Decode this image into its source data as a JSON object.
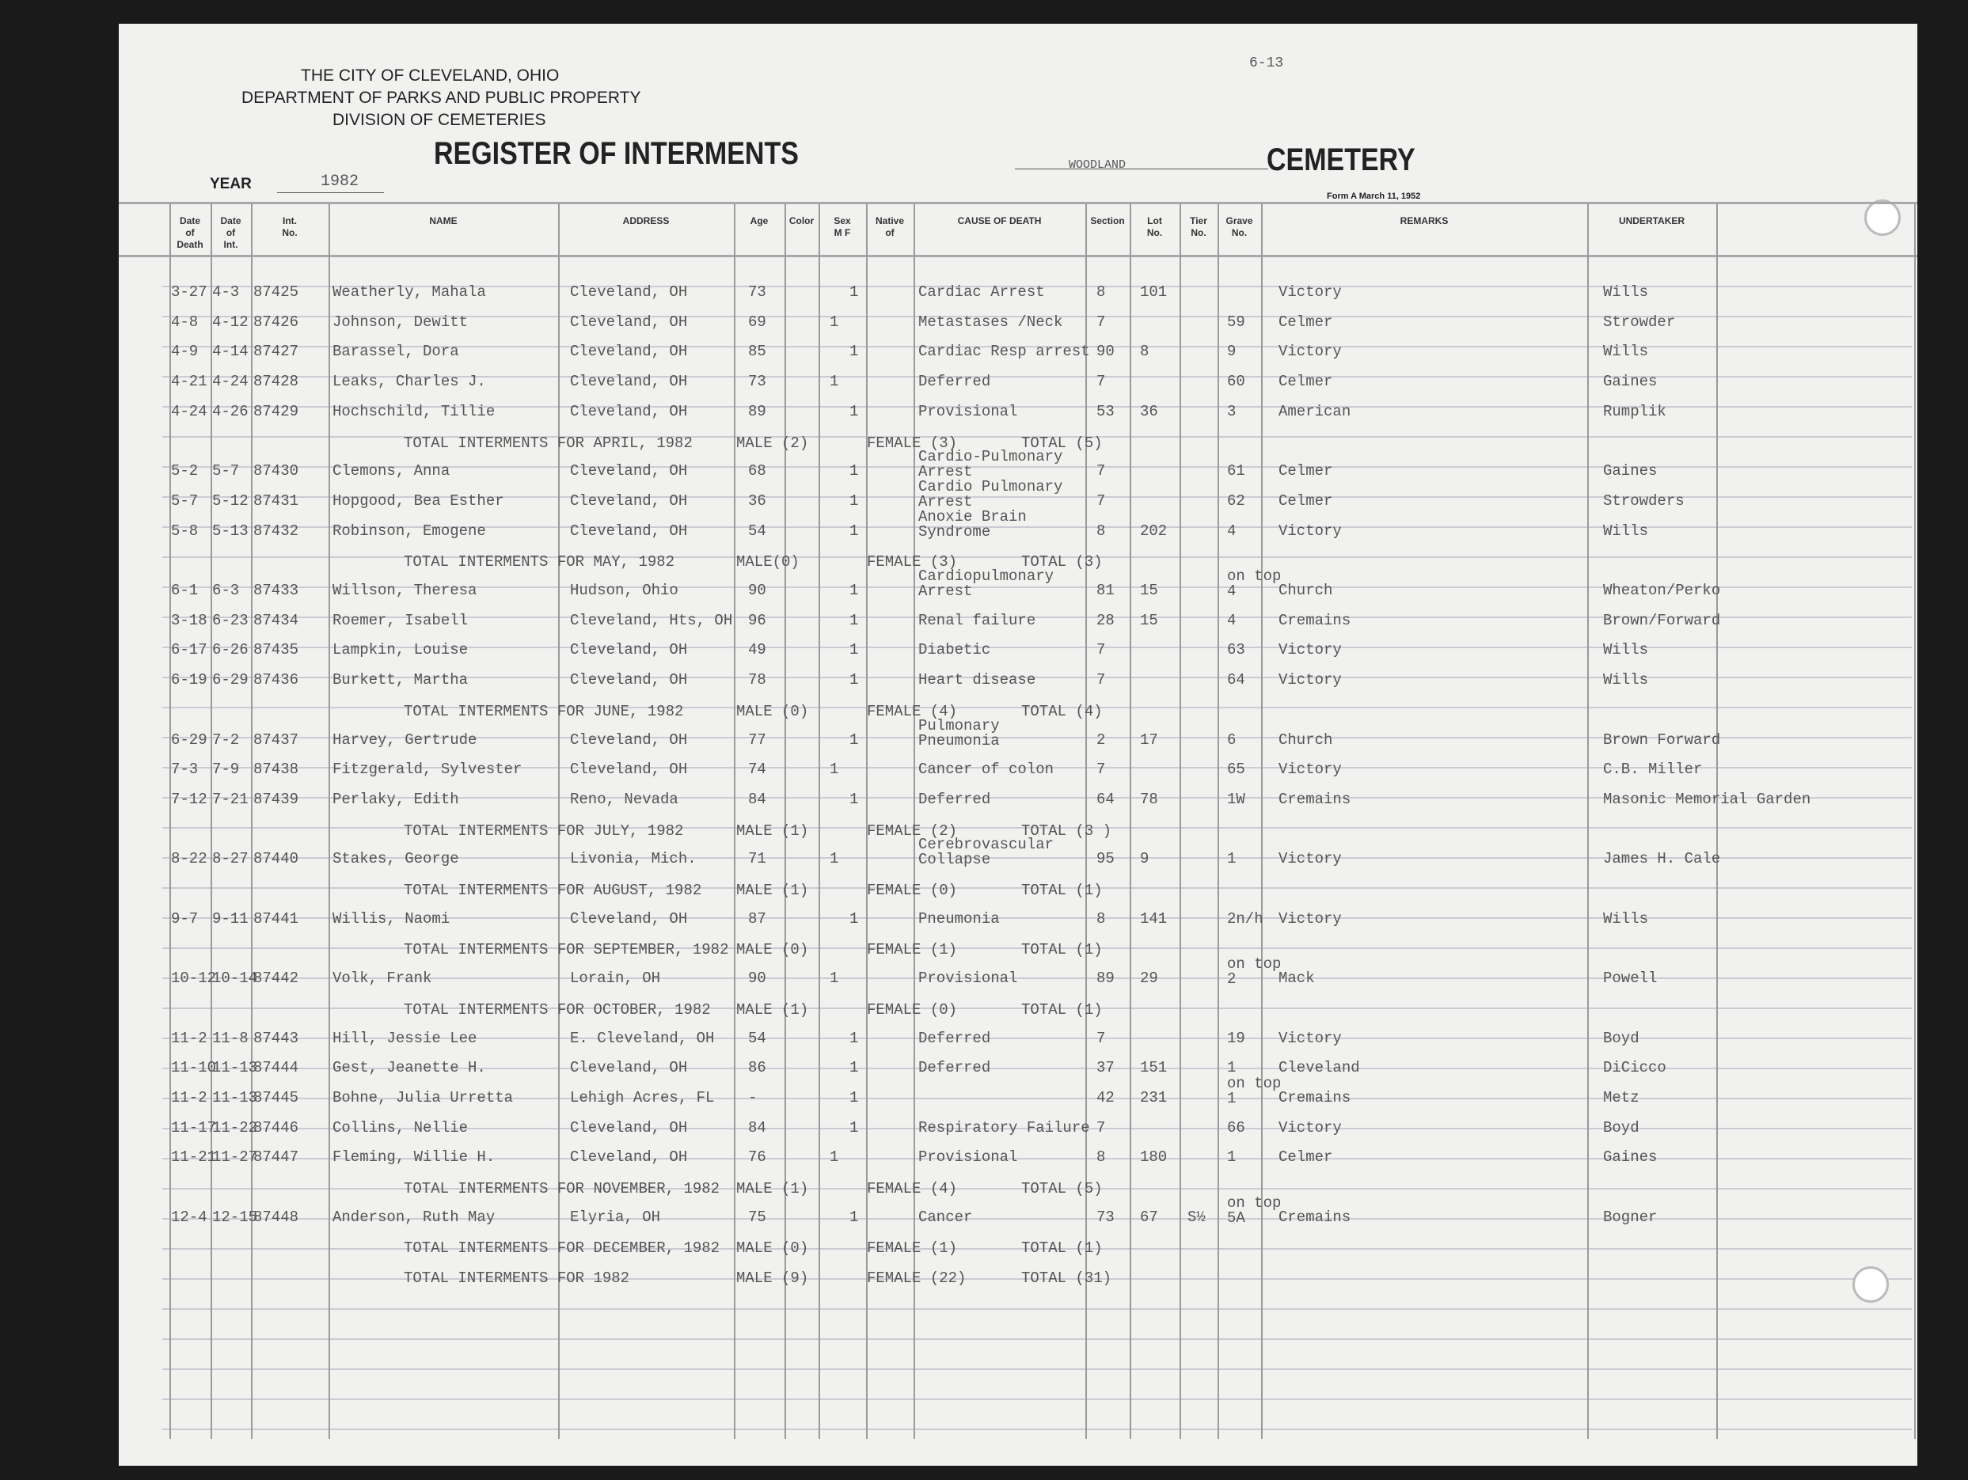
{
  "header": {
    "city": "THE CITY OF CLEVELAND, OHIO",
    "department": "DEPARTMENT OF PARKS AND PUBLIC PROPERTY",
    "division": "DIVISION OF CEMETERIES",
    "title": "REGISTER OF INTERMENTS",
    "year_label": "YEAR",
    "year": "1982",
    "cemetery_name": "WOODLAND",
    "cemetery_label": "CEMETERY",
    "form": "Form A March 11, 1952",
    "page_ref": "6-13"
  },
  "columns": [
    "Date\nof\nDeath",
    "Date\nof\nInt.",
    "Int.\nNo.",
    "NAME",
    "ADDRESS",
    "Age",
    "Color",
    "Sex\nM  F",
    "Native\nof",
    "CAUSE OF DEATH",
    "Section",
    "Lot\nNo.",
    "Tier\nNo.",
    "Grave\nNo.",
    "REMARKS",
    "UNDERTAKER"
  ],
  "rows": [
    {
      "dd": "3-27",
      "di": "4-3",
      "no": "87425",
      "name": "Weatherly, Mahala",
      "addr": "Cleveland, OH",
      "age": "73",
      "m": "",
      "f": "1",
      "cause": "Cardiac Arrest",
      "sec": "8",
      "lot": "101",
      "tier": "",
      "grave": "",
      "rem": "Victory",
      "und": "Wills"
    },
    {
      "dd": "4-8",
      "di": "4-12",
      "no": "87426",
      "name": "Johnson, Dewitt",
      "addr": "Cleveland, OH",
      "age": "69",
      "m": "1",
      "f": "",
      "cause": "Metastases /Neck",
      "sec": "7",
      "lot": "",
      "tier": "",
      "grave": "59",
      "rem": "Celmer",
      "und": "Strowder"
    },
    {
      "dd": "4-9",
      "di": "4-14",
      "no": "87427",
      "name": "Barassel, Dora",
      "addr": "Cleveland, OH",
      "age": "85",
      "m": "",
      "f": "1",
      "cause": "Cardiac Resp arrest",
      "sec": "90",
      "lot": "8",
      "tier": "",
      "grave": "9",
      "rem": "Victory",
      "und": "Wills"
    },
    {
      "dd": "4-21",
      "di": "4-24",
      "no": "87428",
      "name": "Leaks, Charles  J.",
      "addr": "Cleveland, OH",
      "age": "73",
      "m": "1",
      "f": "",
      "cause": "Deferred",
      "sec": "7",
      "lot": "",
      "tier": "",
      "grave": "60",
      "rem": "Celmer",
      "und": "Gaines"
    },
    {
      "dd": "4-24",
      "di": "4-26",
      "no": "87429",
      "name": "Hochschild, Tillie",
      "addr": "Cleveland, OH",
      "age": "89",
      "m": "",
      "f": "1",
      "cause": "Provisional",
      "sec": "53",
      "lot": "36",
      "tier": "",
      "grave": "3",
      "rem": "American",
      "und": "Rumplik"
    },
    {
      "total": "TOTAL INTERMENTS FOR APRIL, 1982",
      "male": "MALE (2)",
      "female": "FEMALE (3)",
      "sum": "TOTAL (5)"
    },
    {
      "dd": "5-2",
      "di": "5-7",
      "no": "87430",
      "name": "Clemons, Anna",
      "addr": "Cleveland, OH",
      "age": "68",
      "m": "",
      "f": "1",
      "cause": "Cardio-Pulmonary\nArrest",
      "sec": "7",
      "lot": "",
      "tier": "",
      "grave": "61",
      "rem": "Celmer",
      "und": "Gaines"
    },
    {
      "dd": "5-7",
      "di": "5-12",
      "no": "87431",
      "name": "Hopgood, Bea Esther",
      "addr": "Cleveland, OH",
      "age": "36",
      "m": "",
      "f": "1",
      "cause": "Cardio Pulmonary\nArrest",
      "sec": "7",
      "lot": "",
      "tier": "",
      "grave": "62",
      "rem": "Celmer",
      "und": "Strowders"
    },
    {
      "dd": "5-8",
      "di": "5-13",
      "no": "87432",
      "name": "Robinson, Emogene",
      "addr": "Cleveland, OH",
      "age": "54",
      "m": "",
      "f": "1",
      "cause": "Anoxie Brain\nSyndrome",
      "sec": "8",
      "lot": "202",
      "tier": "",
      "grave": "4",
      "rem": "Victory",
      "und": "Wills"
    },
    {
      "total": "TOTAL INTERMENTS FOR MAY, 1982",
      "male": "MALE(0)",
      "female": "FEMALE (3)",
      "sum": "TOTAL (3)"
    },
    {
      "dd": "6-1",
      "di": "6-3",
      "no": "87433",
      "name": "Willson, Theresa",
      "addr": "Hudson, Ohio",
      "age": "90",
      "m": "",
      "f": "1",
      "cause": "Cardiopulmonary\nArrest",
      "sec": "81",
      "lot": "15",
      "tier": "",
      "grave": "on top\n4",
      "rem": "Church",
      "und": "Wheaton/Perko"
    },
    {
      "dd": "3-18",
      "di": "6-23",
      "no": "87434",
      "name": "Roemer, Isabell",
      "addr": "Cleveland, Hts, OH",
      "age": "96",
      "m": "",
      "f": "1",
      "cause": "Renal failure",
      "sec": "28",
      "lot": "15",
      "tier": "",
      "grave": "4",
      "rem": "Cremains",
      "und": "Brown/Forward"
    },
    {
      "dd": "6-17",
      "di": "6-26",
      "no": "87435",
      "name": "Lampkin, Louise",
      "addr": "Cleveland, OH",
      "age": "49",
      "m": "",
      "f": "1",
      "cause": "Diabetic",
      "sec": "7",
      "lot": "",
      "tier": "",
      "grave": "63",
      "rem": "Victory",
      "und": "Wills"
    },
    {
      "dd": "6-19",
      "di": "6-29",
      "no": "87436",
      "name": "Burkett, Martha",
      "addr": "Cleveland, OH",
      "age": "78",
      "m": "",
      "f": "1",
      "cause": "Heart disease",
      "sec": "7",
      "lot": "",
      "tier": "",
      "grave": "64",
      "rem": "Victory",
      "und": "Wills"
    },
    {
      "total": "TOTAL INTERMENTS FOR JUNE, 1982",
      "male": "MALE (0)",
      "female": "FEMALE (4)",
      "sum": "TOTAL (4)"
    },
    {
      "dd": "6-29",
      "di": "7-2",
      "no": "87437",
      "name": "Harvey, Gertrude",
      "addr": "Cleveland, OH",
      "age": "77",
      "m": "",
      "f": "1",
      "cause": "Pulmonary\nPneumonia",
      "sec": "2",
      "lot": "17",
      "tier": "",
      "grave": "6",
      "rem": "Church",
      "und": "Brown Forward"
    },
    {
      "dd": "7-3",
      "di": "7-9",
      "no": "87438",
      "name": "Fitzgerald, Sylvester",
      "addr": "Cleveland, OH",
      "age": "74",
      "m": "1",
      "f": "",
      "cause": "Cancer of colon",
      "sec": "7",
      "lot": "",
      "tier": "",
      "grave": "65",
      "rem": "Victory",
      "und": "C.B. Miller"
    },
    {
      "dd": "7-12",
      "di": "7-21",
      "no": "87439",
      "name": "Perlaky, Edith",
      "addr": "Reno, Nevada",
      "age": "84",
      "m": "",
      "f": "1",
      "cause": "Deferred",
      "sec": "64",
      "lot": "78",
      "tier": "",
      "grave": "1W",
      "rem": "Cremains",
      "und": "Masonic Memorial Garden"
    },
    {
      "total": "TOTAL INTERMENTS FOR JULY, 1982",
      "male": "MALE (1)",
      "female": "FEMALE (2)",
      "sum": "TOTAL (3 )"
    },
    {
      "dd": "8-22",
      "di": "8-27",
      "no": "87440",
      "name": "Stakes, George",
      "addr": "Livonia, Mich.",
      "age": "71",
      "m": "1",
      "f": "",
      "cause": "Cerebrovascular\nCollapse",
      "sec": "95",
      "lot": "9",
      "tier": "",
      "grave": "1",
      "rem": "Victory",
      "und": "James H. Cale"
    },
    {
      "total": "TOTAL INTERMENTS FOR AUGUST, 1982",
      "male": "MALE (1)",
      "female": "FEMALE (0)",
      "sum": "TOTAL (1)"
    },
    {
      "dd": "9-7",
      "di": "9-11",
      "no": "87441",
      "name": "Willis, Naomi",
      "addr": "Cleveland, OH",
      "age": "87",
      "m": "",
      "f": "1",
      "cause": "Pneumonia",
      "sec": "8",
      "lot": "141",
      "tier": "",
      "grave": "2n/h",
      "rem": "Victory",
      "und": "Wills"
    },
    {
      "total": "TOTAL INTERMENTS FOR SEPTEMBER, 1982",
      "male": "MALE (0)",
      "female": "FEMALE (1)",
      "sum": "TOTAL (1)"
    },
    {
      "dd": "10-12",
      "di": "10-14",
      "no": "87442",
      "name": "Volk, Frank",
      "addr": "Lorain, OH",
      "age": "90",
      "m": "1",
      "f": "",
      "cause": "Provisional",
      "sec": "89",
      "lot": "29",
      "tier": "",
      "grave": "on top\n2",
      "rem": "Mack",
      "und": "Powell"
    },
    {
      "total": "TOTAL INTERMENTS FOR OCTOBER, 1982",
      "male": "MALE (1)",
      "female": "FEMALE (0)",
      "sum": "TOTAL (1)"
    },
    {
      "dd": "11-2",
      "di": "11-8",
      "no": "87443",
      "name": "Hill, Jessie Lee",
      "addr": "E. Cleveland, OH",
      "age": "54",
      "m": "",
      "f": "1",
      "cause": "Deferred",
      "sec": "7",
      "lot": "",
      "tier": "",
      "grave": "19",
      "rem": "Victory",
      "und": "Boyd"
    },
    {
      "dd": "11-10",
      "di": "11-13",
      "no": "87444",
      "name": "Gest, Jeanette  H.",
      "addr": "Cleveland, OH",
      "age": "86",
      "m": "",
      "f": "1",
      "cause": "Deferred",
      "sec": "37",
      "lot": "151",
      "tier": "",
      "grave": "1",
      "rem": "Cleveland",
      "und": "DiCicco"
    },
    {
      "dd": "11-2",
      "di": "11-13",
      "no": "87445",
      "name": "Bohne, Julia Urretta",
      "addr": "Lehigh Acres, FL",
      "age": "-",
      "m": "",
      "f": "1",
      "cause": "",
      "sec": "42",
      "lot": "231",
      "tier": "",
      "grave": "on top\n1",
      "rem": "Cremains",
      "und": "Metz"
    },
    {
      "dd": "11-17",
      "di": "11-22",
      "no": "87446",
      "name": "Collins, Nellie",
      "addr": "Cleveland, OH",
      "age": "84",
      "m": "",
      "f": "1",
      "cause": "Respiratory Failure",
      "sec": "7",
      "lot": "",
      "tier": "",
      "grave": "66",
      "rem": "Victory",
      "und": "Boyd"
    },
    {
      "dd": "11-21",
      "di": "11-27",
      "no": "87447",
      "name": "Fleming, Willie  H.",
      "addr": "Cleveland, OH",
      "age": "76",
      "m": "1",
      "f": "",
      "cause": "Provisional",
      "sec": "8",
      "lot": "180",
      "tier": "",
      "grave": "1",
      "rem": "Celmer",
      "und": "Gaines"
    },
    {
      "total": "TOTAL INTERMENTS FOR NOVEMBER, 1982",
      "male": "MALE (1)",
      "female": "FEMALE (4)",
      "sum": "TOTAL (5)"
    },
    {
      "dd": "12-4",
      "di": "12-15",
      "no": "87448",
      "name": "Anderson, Ruth May",
      "addr": "Elyria, OH",
      "age": "75",
      "m": "",
      "f": "1",
      "cause": "Cancer",
      "sec": "73",
      "lot": "67",
      "tier": "S½",
      "grave": "on top\n5A",
      "rem": "Cremains",
      "und": "Bogner"
    },
    {
      "total": "TOTAL INTERMENTS FOR DECEMBER, 1982",
      "male": "MALE (0)",
      "female": "FEMALE (1)",
      "sum": "TOTAL (1)"
    },
    {
      "total": "TOTAL INTERMENTS FOR 1982",
      "male": "MALE (9)",
      "female": "FEMALE (22)",
      "sum": "TOTAL (31)"
    }
  ]
}
